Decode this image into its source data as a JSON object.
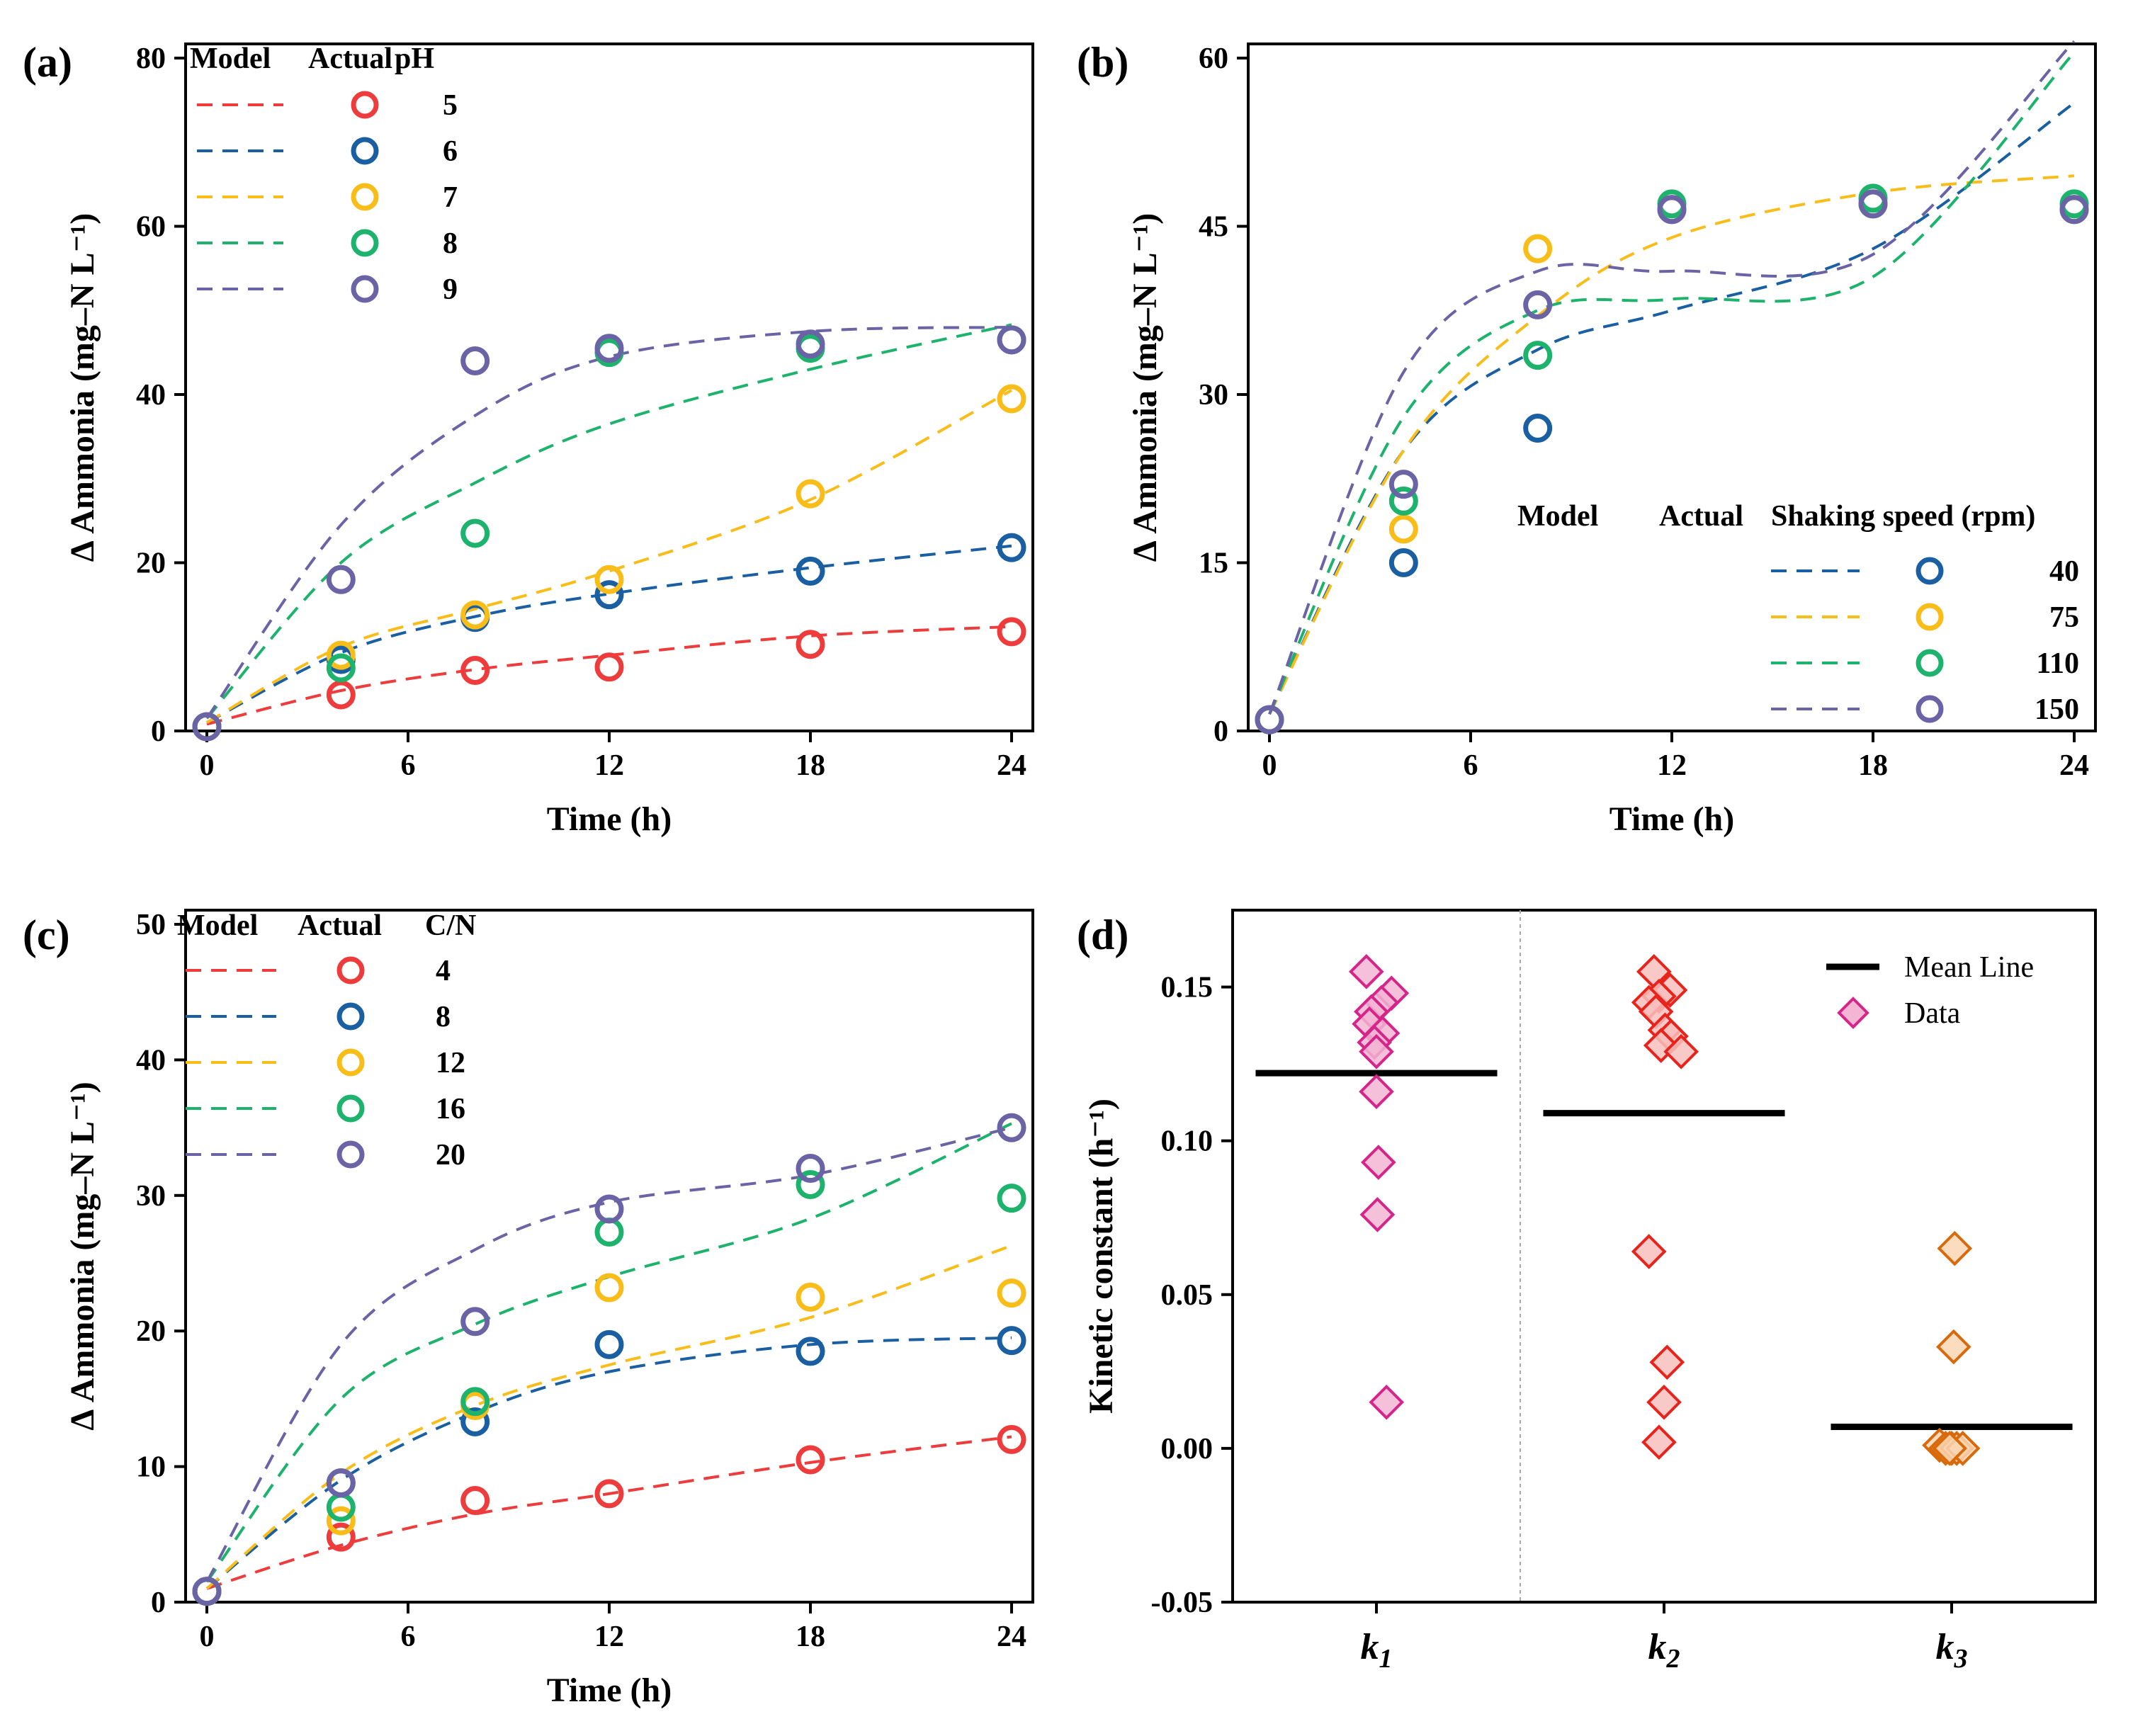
{
  "chart_data": [
    {
      "panel": "(a)",
      "type": "scatter",
      "title": "",
      "xlabel": "Time (h)",
      "ylabel": "Δ Ammonia (mg–N L⁻¹)",
      "xlim": [
        0,
        24
      ],
      "ylim": [
        0,
        80
      ],
      "xticks": [
        0,
        6,
        12,
        18,
        24
      ],
      "yticks": [
        0,
        20,
        40,
        60,
        80
      ],
      "legend_headers": [
        "Model",
        "Actual",
        "pH"
      ],
      "legend_position": "top-left",
      "series": [
        {
          "name": "5",
          "color": "#ee3b3b",
          "actual": [
            [
              0,
              0.5
            ],
            [
              4,
              4.3
            ],
            [
              8,
              7.2
            ],
            [
              12,
              7.6
            ],
            [
              18,
              10.3
            ],
            [
              24,
              11.8
            ]
          ],
          "model": [
            [
              0,
              0.8
            ],
            [
              4,
              4.8
            ],
            [
              8,
              7.3
            ],
            [
              12,
              9.0
            ],
            [
              18,
              11.3
            ],
            [
              24,
              12.4
            ]
          ]
        },
        {
          "name": "6",
          "color": "#1a5fa2",
          "actual": [
            [
              0,
              0.5
            ],
            [
              4,
              8.5
            ],
            [
              8,
              13.5
            ],
            [
              12,
              16.2
            ],
            [
              18,
              19.0
            ],
            [
              24,
              21.8
            ]
          ],
          "model": [
            [
              0,
              1.0
            ],
            [
              4,
              9.3
            ],
            [
              8,
              13.6
            ],
            [
              12,
              16.3
            ],
            [
              18,
              19.4
            ],
            [
              24,
              22.0
            ]
          ]
        },
        {
          "name": "7",
          "color": "#f9bd19",
          "actual": [
            [
              0,
              0.5
            ],
            [
              4,
              9.0
            ],
            [
              8,
              13.8
            ],
            [
              12,
              18.0
            ],
            [
              18,
              28.2
            ],
            [
              24,
              39.5
            ]
          ],
          "model": [
            [
              0,
              1.0
            ],
            [
              4,
              10.0
            ],
            [
              8,
              14.5
            ],
            [
              12,
              19.0
            ],
            [
              18,
              27.5
            ],
            [
              24,
              40.5
            ]
          ]
        },
        {
          "name": "8",
          "color": "#1db36c",
          "actual": [
            [
              0,
              0.5
            ],
            [
              4,
              7.5
            ],
            [
              8,
              23.5
            ],
            [
              12,
              45.0
            ],
            [
              18,
              45.5
            ],
            [
              24,
              46.5
            ]
          ],
          "model": [
            [
              0,
              1.5
            ],
            [
              4,
              20.0
            ],
            [
              8,
              29.5
            ],
            [
              12,
              36.5
            ],
            [
              18,
              43.0
            ],
            [
              24,
              48.3
            ]
          ]
        },
        {
          "name": "9",
          "color": "#6a63a6",
          "actual": [
            [
              0,
              0.5
            ],
            [
              4,
              18.0
            ],
            [
              8,
              44.0
            ],
            [
              12,
              45.5
            ],
            [
              18,
              46.0
            ],
            [
              24,
              46.5
            ]
          ],
          "model": [
            [
              0,
              1.5
            ],
            [
              4,
              24.5
            ],
            [
              8,
              37.5
            ],
            [
              12,
              44.5
            ],
            [
              18,
              47.5
            ],
            [
              24,
              48.0
            ]
          ]
        }
      ]
    },
    {
      "panel": "(b)",
      "type": "scatter",
      "title": "",
      "xlabel": "Time (h)",
      "ylabel": "Δ Ammonia (mg–N L⁻¹)",
      "xlim": [
        0,
        24
      ],
      "ylim": [
        0,
        60
      ],
      "xticks": [
        0,
        6,
        12,
        18,
        24
      ],
      "yticks": [
        0,
        15,
        30,
        45,
        60
      ],
      "legend_headers": [
        "Model",
        "Actual",
        "Shaking speed (rpm)"
      ],
      "legend_position": "bottom-right",
      "series": [
        {
          "name": "40",
          "color": "#1a5fa2",
          "actual": [
            [
              0,
              1.0
            ],
            [
              4,
              15.0
            ],
            [
              8,
              27.0
            ],
            [
              12,
              46.5
            ],
            [
              18,
              47.0
            ],
            [
              24,
              46.5
            ]
          ],
          "model": [
            [
              0,
              1.5
            ],
            [
              4,
              25.0
            ],
            [
              8,
              34.0
            ],
            [
              12,
              37.5
            ],
            [
              18,
              43.0
            ],
            [
              24,
              56.0
            ]
          ]
        },
        {
          "name": "75",
          "color": "#f9bd19",
          "actual": [
            [
              0,
              1.0
            ],
            [
              4,
              18.0
            ],
            [
              8,
              43.0
            ],
            [
              12,
              46.5
            ],
            [
              18,
              47.0
            ],
            [
              24,
              46.5
            ]
          ],
          "model": [
            [
              0,
              1.5
            ],
            [
              4,
              25.0
            ],
            [
              8,
              37.0
            ],
            [
              12,
              44.0
            ],
            [
              18,
              48.0
            ],
            [
              24,
              49.5
            ]
          ]
        },
        {
          "name": "110",
          "color": "#1db36c",
          "actual": [
            [
              0,
              1.0
            ],
            [
              4,
              20.5
            ],
            [
              8,
              33.5
            ],
            [
              12,
              47.0
            ],
            [
              18,
              47.5
            ],
            [
              24,
              47.0
            ]
          ],
          "model": [
            [
              0,
              1.5
            ],
            [
              4,
              28.0
            ],
            [
              8,
              37.5
            ],
            [
              12,
              38.5
            ],
            [
              18,
              40.5
            ],
            [
              24,
              60.5
            ]
          ]
        },
        {
          "name": "150",
          "color": "#6a63a6",
          "actual": [
            [
              0,
              1.0
            ],
            [
              4,
              22.0
            ],
            [
              8,
              38.0
            ],
            [
              12,
              46.5
            ],
            [
              18,
              47.0
            ],
            [
              24,
              46.5
            ]
          ],
          "model": [
            [
              0,
              1.5
            ],
            [
              4,
              32.0
            ],
            [
              8,
              41.0
            ],
            [
              12,
              41.0
            ],
            [
              18,
              42.5
            ],
            [
              24,
              61.5
            ]
          ]
        }
      ]
    },
    {
      "panel": "(c)",
      "type": "scatter",
      "title": "",
      "xlabel": "Time (h)",
      "ylabel": "Δ Ammonia (mg–N L⁻¹)",
      "xlim": [
        0,
        24
      ],
      "ylim": [
        0,
        50
      ],
      "xticks": [
        0,
        6,
        12,
        18,
        24
      ],
      "yticks": [
        0,
        10,
        20,
        30,
        40,
        50
      ],
      "legend_headers": [
        "Model",
        "Actual",
        "C/N"
      ],
      "legend_position": "top-left",
      "series": [
        {
          "name": "4",
          "color": "#ee3b3b",
          "actual": [
            [
              0,
              0.8
            ],
            [
              4,
              4.8
            ],
            [
              8,
              7.5
            ],
            [
              12,
              8.0
            ],
            [
              18,
              10.5
            ],
            [
              24,
              12.0
            ]
          ],
          "model": [
            [
              0,
              1.0
            ],
            [
              4,
              4.2
            ],
            [
              8,
              6.5
            ],
            [
              12,
              8.0
            ],
            [
              18,
              10.3
            ],
            [
              24,
              12.2
            ]
          ]
        },
        {
          "name": "8",
          "color": "#1a5fa2",
          "actual": [
            [
              0,
              0.8
            ],
            [
              4,
              8.8
            ],
            [
              8,
              13.3
            ],
            [
              12,
              19.0
            ],
            [
              18,
              18.5
            ],
            [
              24,
              19.3
            ]
          ],
          "model": [
            [
              0,
              1.0
            ],
            [
              4,
              9.0
            ],
            [
              8,
              14.0
            ],
            [
              12,
              17.0
            ],
            [
              18,
              19.0
            ],
            [
              24,
              19.5
            ]
          ]
        },
        {
          "name": "12",
          "color": "#f9bd19",
          "actual": [
            [
              0,
              0.8
            ],
            [
              4,
              6.0
            ],
            [
              8,
              14.5
            ],
            [
              12,
              23.2
            ],
            [
              18,
              22.5
            ],
            [
              24,
              22.8
            ]
          ],
          "model": [
            [
              0,
              1.0
            ],
            [
              4,
              9.5
            ],
            [
              8,
              14.5
            ],
            [
              12,
              17.5
            ],
            [
              18,
              21.0
            ],
            [
              24,
              26.3
            ]
          ]
        },
        {
          "name": "16",
          "color": "#1db36c",
          "actual": [
            [
              0,
              0.8
            ],
            [
              4,
              7.0
            ],
            [
              8,
              14.8
            ],
            [
              12,
              27.3
            ],
            [
              18,
              30.8
            ],
            [
              24,
              29.8
            ]
          ],
          "model": [
            [
              0,
              1.5
            ],
            [
              4,
              15.0
            ],
            [
              8,
              20.5
            ],
            [
              12,
              24.0
            ],
            [
              18,
              28.3
            ],
            [
              24,
              35.3
            ]
          ]
        },
        {
          "name": "20",
          "color": "#6a63a6",
          "actual": [
            [
              0,
              0.8
            ],
            [
              4,
              8.8
            ],
            [
              8,
              20.7
            ],
            [
              12,
              29.0
            ],
            [
              18,
              32.0
            ],
            [
              24,
              35.0
            ]
          ],
          "model": [
            [
              0,
              1.5
            ],
            [
              4,
              19.0
            ],
            [
              8,
              26.0
            ],
            [
              12,
              29.5
            ],
            [
              18,
              31.5
            ],
            [
              24,
              35.0
            ]
          ]
        }
      ]
    },
    {
      "panel": "(d)",
      "type": "scatter",
      "title": "",
      "xlabel": "",
      "ylabel": "Kinetic constant (h⁻¹)",
      "ylim": [
        -0.05,
        0.175
      ],
      "yticks": [
        -0.05,
        0.0,
        0.05,
        0.1,
        0.15
      ],
      "ytick_labels": [
        "-0.05",
        "0.00",
        "0.05",
        "0.10",
        "0.15"
      ],
      "categories": [
        "k1",
        "k2",
        "k3"
      ],
      "category_labels": [
        {
          "base": "k",
          "sub": "1"
        },
        {
          "base": "k",
          "sub": "2"
        },
        {
          "base": "k",
          "sub": "3"
        }
      ],
      "legend": [
        "Mean Line",
        "Data"
      ],
      "legend_position": "top-right",
      "groups": [
        {
          "name": "k1",
          "color": "#d6258a",
          "fill": "#f2b5d4",
          "mean": 0.122,
          "values": [
            0.155,
            0.148,
            0.145,
            0.142,
            0.138,
            0.135,
            0.132,
            0.129,
            0.116,
            0.093,
            0.076,
            0.015
          ],
          "jitter": [
            -0.1,
            0.15,
            0.05,
            -0.05,
            -0.07,
            0.06,
            -0.02,
            0.0,
            0.0,
            0.02,
            0.01,
            0.1
          ]
        },
        {
          "name": "k2",
          "color": "#e8231c",
          "fill": "#f8bfbd",
          "mean": 0.109,
          "values": [
            0.155,
            0.149,
            0.147,
            0.145,
            0.142,
            0.136,
            0.134,
            0.131,
            0.129,
            0.064,
            0.028,
            0.015,
            0.002
          ],
          "jitter": [
            -0.1,
            0.06,
            -0.05,
            -0.15,
            -0.08,
            0.01,
            0.07,
            -0.03,
            0.17,
            -0.15,
            0.03,
            0.0,
            -0.05
          ]
        },
        {
          "name": "k3",
          "color": "#d96a0c",
          "fill": "#fad6b4",
          "mean": 0.007,
          "values": [
            0.065,
            0.033,
            0.001,
            0.0,
            0.0,
            0.0,
            0.0,
            0.0
          ],
          "jitter": [
            0.03,
            0.02,
            -0.12,
            -0.06,
            0.0,
            0.05,
            0.11,
            -0.02
          ]
        }
      ]
    }
  ]
}
